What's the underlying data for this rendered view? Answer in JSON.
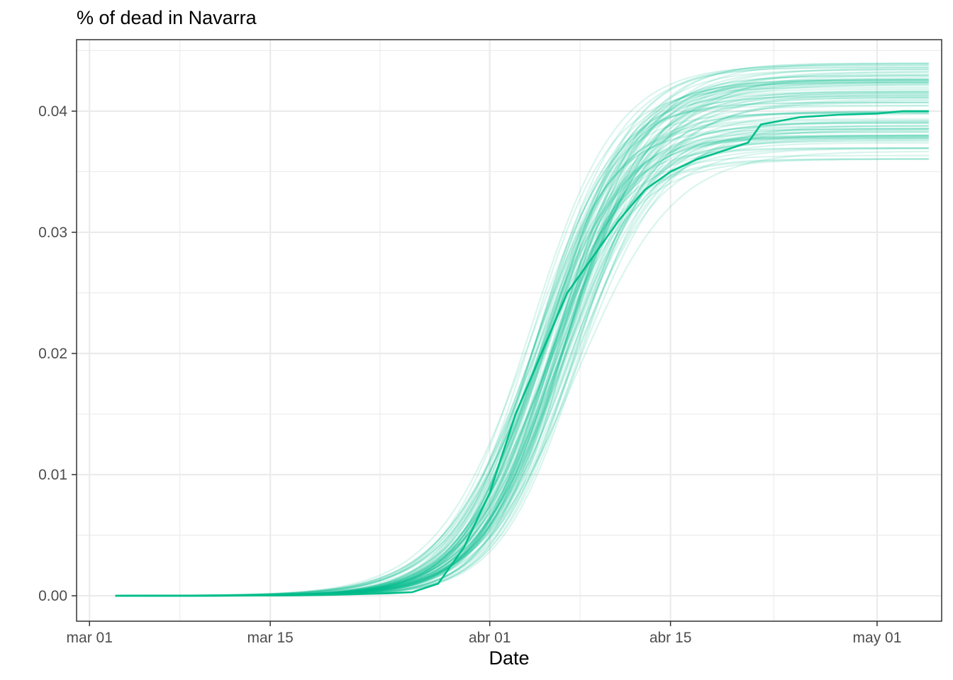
{
  "chart_data": {
    "type": "line",
    "title": "% of dead in  Navarra",
    "xlabel": "Date",
    "ylabel": "",
    "x_axis": {
      "type": "date",
      "range": [
        "2020-02-29",
        "2020-05-06"
      ],
      "ticks": [
        {
          "date": "2020-03-01",
          "label": "mar 01"
        },
        {
          "date": "2020-03-15",
          "label": "mar 15"
        },
        {
          "date": "2020-04-01",
          "label": "abr 01"
        },
        {
          "date": "2020-04-15",
          "label": "abr 15"
        },
        {
          "date": "2020-05-01",
          "label": "may 01"
        }
      ]
    },
    "y_axis": {
      "range": [
        -0.0021,
        0.0459
      ],
      "ticks": [
        {
          "value": 0.0,
          "label": "0.00"
        },
        {
          "value": 0.01,
          "label": "0.01"
        },
        {
          "value": 0.02,
          "label": "0.02"
        },
        {
          "value": 0.03,
          "label": "0.03"
        },
        {
          "value": 0.04,
          "label": "0.04"
        }
      ]
    },
    "grid": true,
    "legend": "none",
    "colors": {
      "line": "#00BE8A",
      "grid": "#EBEBEB",
      "panel_border": "#333333"
    },
    "ensemble": {
      "description_count": 100,
      "start_date": "2020-03-03",
      "end_date": "2020-05-05",
      "final_range": [
        0.036,
        0.044
      ],
      "midpoint_range": [
        "2020-04-04",
        "2020-04-08"
      ],
      "opacity": 0.15
    },
    "series": [
      {
        "points": [
          {
            "x": "2020-03-03",
            "y": 0.0
          },
          {
            "x": "2020-03-10",
            "y": 0.0
          },
          {
            "x": "2020-03-15",
            "y": 5e-05
          },
          {
            "x": "2020-03-20",
            "y": 0.0001
          },
          {
            "x": "2020-03-24",
            "y": 0.0002
          },
          {
            "x": "2020-03-26",
            "y": 0.0003
          },
          {
            "x": "2020-03-28",
            "y": 0.001
          },
          {
            "x": "2020-03-30",
            "y": 0.004
          },
          {
            "x": "2020-04-01",
            "y": 0.0085
          },
          {
            "x": "2020-04-03",
            "y": 0.015
          },
          {
            "x": "2020-04-05",
            "y": 0.02
          },
          {
            "x": "2020-04-07",
            "y": 0.025
          },
          {
            "x": "2020-04-09",
            "y": 0.028
          },
          {
            "x": "2020-04-11",
            "y": 0.031
          },
          {
            "x": "2020-04-13",
            "y": 0.0335
          },
          {
            "x": "2020-04-15",
            "y": 0.035
          },
          {
            "x": "2020-04-17",
            "y": 0.036
          },
          {
            "x": "2020-04-19",
            "y": 0.0367
          },
          {
            "x": "2020-04-21",
            "y": 0.0374
          },
          {
            "x": "2020-04-22",
            "y": 0.0389
          },
          {
            "x": "2020-04-25",
            "y": 0.0395
          },
          {
            "x": "2020-04-28",
            "y": 0.0397
          },
          {
            "x": "2020-05-01",
            "y": 0.0398
          },
          {
            "x": "2020-05-03",
            "y": 0.04
          },
          {
            "x": "2020-05-05",
            "y": 0.04
          }
        ]
      }
    ]
  }
}
